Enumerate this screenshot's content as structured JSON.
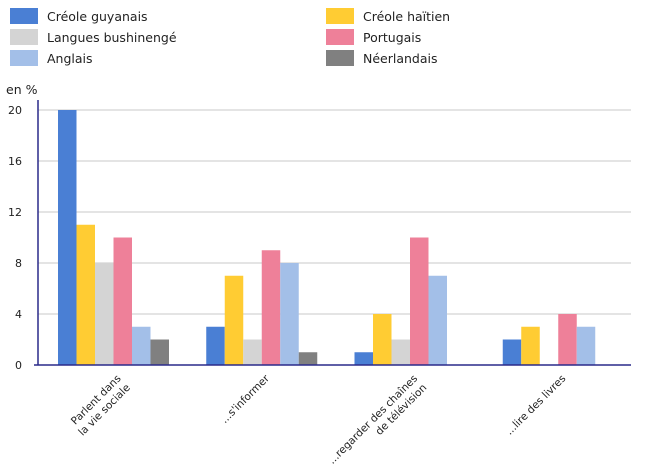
{
  "chart_data": {
    "type": "bar",
    "ylabel": "en %",
    "ylim": [
      0,
      20
    ],
    "yticks": [
      0,
      4,
      8,
      12,
      16,
      20
    ],
    "grid": true,
    "legend_position": "top",
    "categories": [
      [
        "Parlent dans",
        "la vie sociale"
      ],
      [
        "...s'informer"
      ],
      [
        "...regarder des chaînes",
        "de télévision"
      ],
      [
        "...lire des livres"
      ]
    ],
    "series": [
      {
        "name": "Créole guyanais",
        "color": "#4a7fd4",
        "values": [
          20,
          3,
          1,
          2
        ]
      },
      {
        "name": "Créole haïtien",
        "color": "#ffcc33",
        "values": [
          11,
          7,
          4,
          3
        ]
      },
      {
        "name": "Langues bushinengé",
        "color": "#d4d4d4",
        "values": [
          8,
          2,
          2,
          0
        ]
      },
      {
        "name": "Portugais",
        "color": "#ee8099",
        "values": [
          10,
          9,
          10,
          4
        ]
      },
      {
        "name": "Anglais",
        "color": "#a3bfe8",
        "values": [
          3,
          8,
          7,
          3
        ]
      },
      {
        "name": "Néerlandais",
        "color": "#808080",
        "values": [
          2,
          1,
          0,
          0
        ]
      }
    ]
  }
}
